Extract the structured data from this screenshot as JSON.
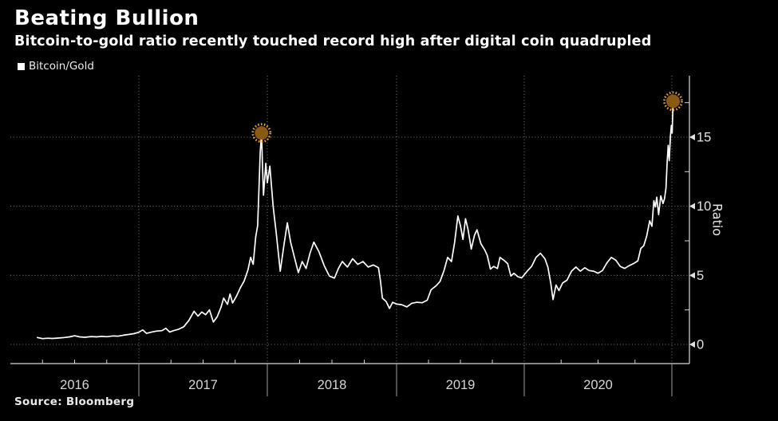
{
  "header": {
    "title": "Beating Bullion",
    "subtitle": "Bitcoin-to-gold ratio recently touched record high after digital coin quadrupled"
  },
  "source": {
    "label": "Source: Bloomberg"
  },
  "colors": {
    "background": "#000000",
    "line": "#ffffff",
    "grid": "#7d7d7d",
    "axis": "#d9d9d9",
    "tick": "#cfcfcf",
    "tick_label": "#e2e2e2",
    "year_label": "#d6d6d6",
    "marker_fill": "#8a5a13",
    "marker_ring": "#f09e1a"
  },
  "chart_data": {
    "type": "line",
    "title": "Beating Bullion",
    "subtitle": "Bitcoin-to-gold ratio recently touched record high after digital coin quadrupled",
    "xlabel": "",
    "ylabel": "Ratio",
    "xlim": [
      2015.92,
      2021.12
    ],
    "ylim": [
      -1.4,
      19.5
    ],
    "grid": "dotted",
    "legend_position": "top-left",
    "x_year_labels": [
      2016,
      2017,
      2018,
      2019,
      2020
    ],
    "x_year_boundaries": [
      2017,
      2018,
      2019,
      2020,
      2021
    ],
    "x_minor_tick_quarters": [
      0.25,
      0.5,
      0.75
    ],
    "y_ticks": [
      0,
      5,
      10,
      15
    ],
    "y_minor_ticks": [
      2.5,
      7.5,
      12.5,
      17.5
    ],
    "series": [
      {
        "name": "Bitcoin/Gold",
        "color": "#ffffff",
        "points": [
          [
            2016.21,
            0.5
          ],
          [
            2016.25,
            0.42
          ],
          [
            2016.29,
            0.45
          ],
          [
            2016.33,
            0.43
          ],
          [
            2016.38,
            0.47
          ],
          [
            2016.42,
            0.5
          ],
          [
            2016.46,
            0.55
          ],
          [
            2016.5,
            0.63
          ],
          [
            2016.54,
            0.55
          ],
          [
            2016.58,
            0.52
          ],
          [
            2016.63,
            0.57
          ],
          [
            2016.67,
            0.55
          ],
          [
            2016.71,
            0.58
          ],
          [
            2016.75,
            0.56
          ],
          [
            2016.8,
            0.62
          ],
          [
            2016.84,
            0.6
          ],
          [
            2016.88,
            0.67
          ],
          [
            2016.92,
            0.72
          ],
          [
            2016.96,
            0.78
          ],
          [
            2017.0,
            0.88
          ],
          [
            2017.03,
            1.05
          ],
          [
            2017.06,
            0.8
          ],
          [
            2017.1,
            0.9
          ],
          [
            2017.14,
            0.97
          ],
          [
            2017.18,
            1.0
          ],
          [
            2017.21,
            1.17
          ],
          [
            2017.24,
            0.9
          ],
          [
            2017.27,
            1.0
          ],
          [
            2017.31,
            1.1
          ],
          [
            2017.35,
            1.28
          ],
          [
            2017.39,
            1.75
          ],
          [
            2017.43,
            2.4
          ],
          [
            2017.46,
            2.05
          ],
          [
            2017.49,
            2.35
          ],
          [
            2017.52,
            2.15
          ],
          [
            2017.55,
            2.5
          ],
          [
            2017.58,
            1.62
          ],
          [
            2017.61,
            2.0
          ],
          [
            2017.64,
            2.7
          ],
          [
            2017.66,
            3.35
          ],
          [
            2017.69,
            2.9
          ],
          [
            2017.71,
            3.65
          ],
          [
            2017.73,
            3.0
          ],
          [
            2017.76,
            3.5
          ],
          [
            2017.79,
            4.1
          ],
          [
            2017.82,
            4.6
          ],
          [
            2017.85,
            5.4
          ],
          [
            2017.87,
            6.3
          ],
          [
            2017.89,
            5.8
          ],
          [
            2017.91,
            7.8
          ],
          [
            2017.925,
            8.6
          ],
          [
            2017.935,
            11.2
          ],
          [
            2017.945,
            13.9
          ],
          [
            2017.955,
            15.3
          ],
          [
            2017.962,
            13.0
          ],
          [
            2017.97,
            10.8
          ],
          [
            2017.978,
            11.8
          ],
          [
            2017.988,
            13.1
          ],
          [
            2018.0,
            11.7
          ],
          [
            2018.02,
            12.9
          ],
          [
            2018.045,
            10.0
          ],
          [
            2018.07,
            8.0
          ],
          [
            2018.1,
            5.3
          ],
          [
            2018.13,
            7.3
          ],
          [
            2018.155,
            8.8
          ],
          [
            2018.18,
            7.4
          ],
          [
            2018.21,
            6.3
          ],
          [
            2018.24,
            5.2
          ],
          [
            2018.27,
            6.0
          ],
          [
            2018.3,
            5.5
          ],
          [
            2018.33,
            6.6
          ],
          [
            2018.36,
            7.4
          ],
          [
            2018.4,
            6.7
          ],
          [
            2018.44,
            5.7
          ],
          [
            2018.48,
            4.95
          ],
          [
            2018.52,
            4.8
          ],
          [
            2018.55,
            5.5
          ],
          [
            2018.58,
            6.0
          ],
          [
            2018.62,
            5.6
          ],
          [
            2018.66,
            6.2
          ],
          [
            2018.7,
            5.8
          ],
          [
            2018.74,
            6.0
          ],
          [
            2018.78,
            5.6
          ],
          [
            2018.82,
            5.75
          ],
          [
            2018.86,
            5.55
          ],
          [
            2018.875,
            4.6
          ],
          [
            2018.89,
            3.35
          ],
          [
            2018.92,
            3.1
          ],
          [
            2018.945,
            2.6
          ],
          [
            2018.97,
            3.05
          ],
          [
            2019.0,
            2.92
          ],
          [
            2019.04,
            2.88
          ],
          [
            2019.08,
            2.72
          ],
          [
            2019.12,
            2.98
          ],
          [
            2019.16,
            3.05
          ],
          [
            2019.2,
            3.02
          ],
          [
            2019.24,
            3.2
          ],
          [
            2019.27,
            3.95
          ],
          [
            2019.31,
            4.25
          ],
          [
            2019.34,
            4.55
          ],
          [
            2019.37,
            5.3
          ],
          [
            2019.4,
            6.3
          ],
          [
            2019.43,
            6.0
          ],
          [
            2019.455,
            7.4
          ],
          [
            2019.48,
            9.3
          ],
          [
            2019.5,
            8.6
          ],
          [
            2019.52,
            7.6
          ],
          [
            2019.54,
            9.1
          ],
          [
            2019.56,
            8.3
          ],
          [
            2019.585,
            6.9
          ],
          [
            2019.61,
            7.9
          ],
          [
            2019.63,
            8.3
          ],
          [
            2019.66,
            7.3
          ],
          [
            2019.69,
            6.85
          ],
          [
            2019.71,
            6.45
          ],
          [
            2019.735,
            5.45
          ],
          [
            2019.76,
            5.65
          ],
          [
            2019.79,
            5.5
          ],
          [
            2019.81,
            6.3
          ],
          [
            2019.84,
            6.1
          ],
          [
            2019.87,
            5.85
          ],
          [
            2019.895,
            4.95
          ],
          [
            2019.92,
            5.15
          ],
          [
            2019.95,
            4.9
          ],
          [
            2019.98,
            4.82
          ],
          [
            2020.02,
            5.3
          ],
          [
            2020.05,
            5.65
          ],
          [
            2020.08,
            6.3
          ],
          [
            2020.11,
            6.6
          ],
          [
            2020.14,
            6.2
          ],
          [
            2020.16,
            5.6
          ],
          [
            2020.18,
            4.4
          ],
          [
            2020.195,
            3.25
          ],
          [
            2020.215,
            4.3
          ],
          [
            2020.235,
            3.9
          ],
          [
            2020.26,
            4.45
          ],
          [
            2020.29,
            4.65
          ],
          [
            2020.32,
            5.3
          ],
          [
            2020.35,
            5.6
          ],
          [
            2020.38,
            5.3
          ],
          [
            2020.41,
            5.55
          ],
          [
            2020.44,
            5.35
          ],
          [
            2020.47,
            5.3
          ],
          [
            2020.5,
            5.15
          ],
          [
            2020.53,
            5.35
          ],
          [
            2020.56,
            5.9
          ],
          [
            2020.59,
            6.3
          ],
          [
            2020.62,
            6.1
          ],
          [
            2020.65,
            5.65
          ],
          [
            2020.68,
            5.5
          ],
          [
            2020.71,
            5.7
          ],
          [
            2020.74,
            5.85
          ],
          [
            2020.77,
            6.05
          ],
          [
            2020.79,
            6.95
          ],
          [
            2020.81,
            7.15
          ],
          [
            2020.83,
            7.85
          ],
          [
            2020.85,
            8.95
          ],
          [
            2020.865,
            8.55
          ],
          [
            2020.878,
            10.4
          ],
          [
            2020.888,
            9.95
          ],
          [
            2020.898,
            10.65
          ],
          [
            2020.91,
            9.4
          ],
          [
            2020.925,
            10.75
          ],
          [
            2020.94,
            10.2
          ],
          [
            2020.95,
            10.55
          ],
          [
            2020.96,
            11.3
          ],
          [
            2020.968,
            13.2
          ],
          [
            2020.975,
            14.4
          ],
          [
            2020.982,
            13.3
          ],
          [
            2020.99,
            15.1
          ],
          [
            2020.997,
            15.85
          ],
          [
            2021.002,
            15.3
          ],
          [
            2021.008,
            17.6
          ]
        ]
      }
    ],
    "annotations": {
      "markers": [
        {
          "x": 2017.955,
          "value": 15.3
        },
        {
          "x": 2021.008,
          "value": 17.6
        }
      ]
    }
  }
}
